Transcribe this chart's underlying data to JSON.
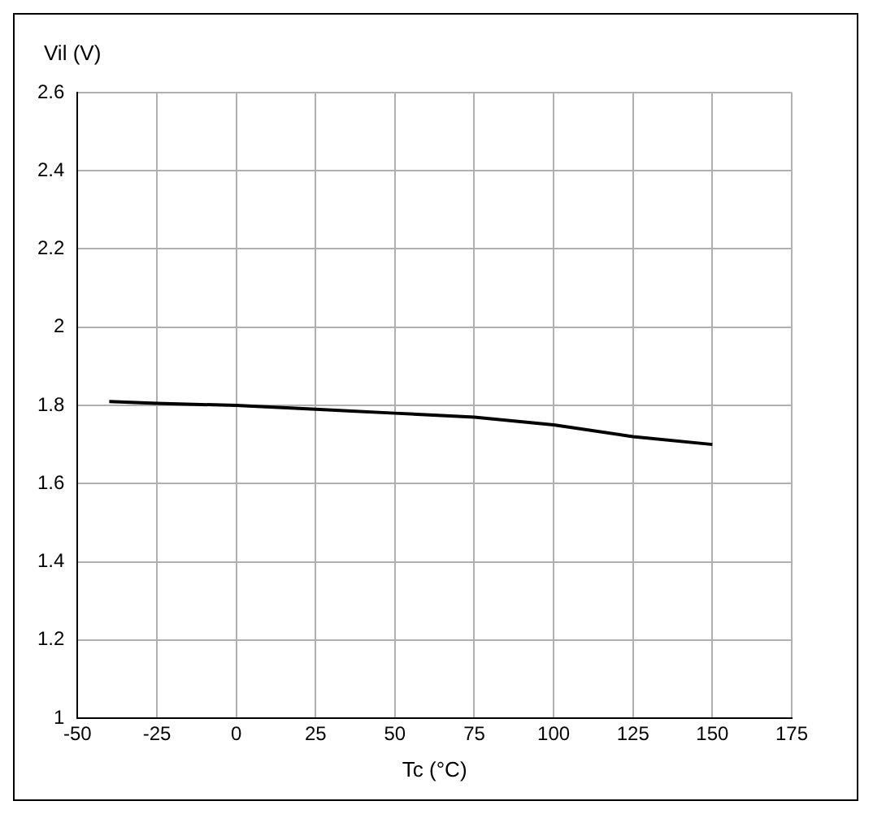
{
  "chart_data": {
    "type": "line",
    "xlabel": "Tc (°C)",
    "ylabel": "Vil (V)",
    "x": [
      -40,
      -25,
      0,
      25,
      50,
      75,
      100,
      125,
      150
    ],
    "series": [
      {
        "color": "#000000",
        "values": [
          1.81,
          1.805,
          1.8,
          1.79,
          1.78,
          1.77,
          1.75,
          1.72,
          1.7
        ]
      }
    ],
    "xlim": [
      -50,
      175
    ],
    "xticks": [
      -50,
      -25,
      0,
      25,
      50,
      75,
      100,
      125,
      150,
      175
    ],
    "ylim": [
      1,
      2.6
    ],
    "yticks": [
      1,
      1.2,
      1.4,
      1.6,
      1.8,
      2,
      2.2,
      2.4,
      2.6
    ],
    "grid": true,
    "legend": false,
    "marker": "none",
    "line_style": "solid"
  }
}
